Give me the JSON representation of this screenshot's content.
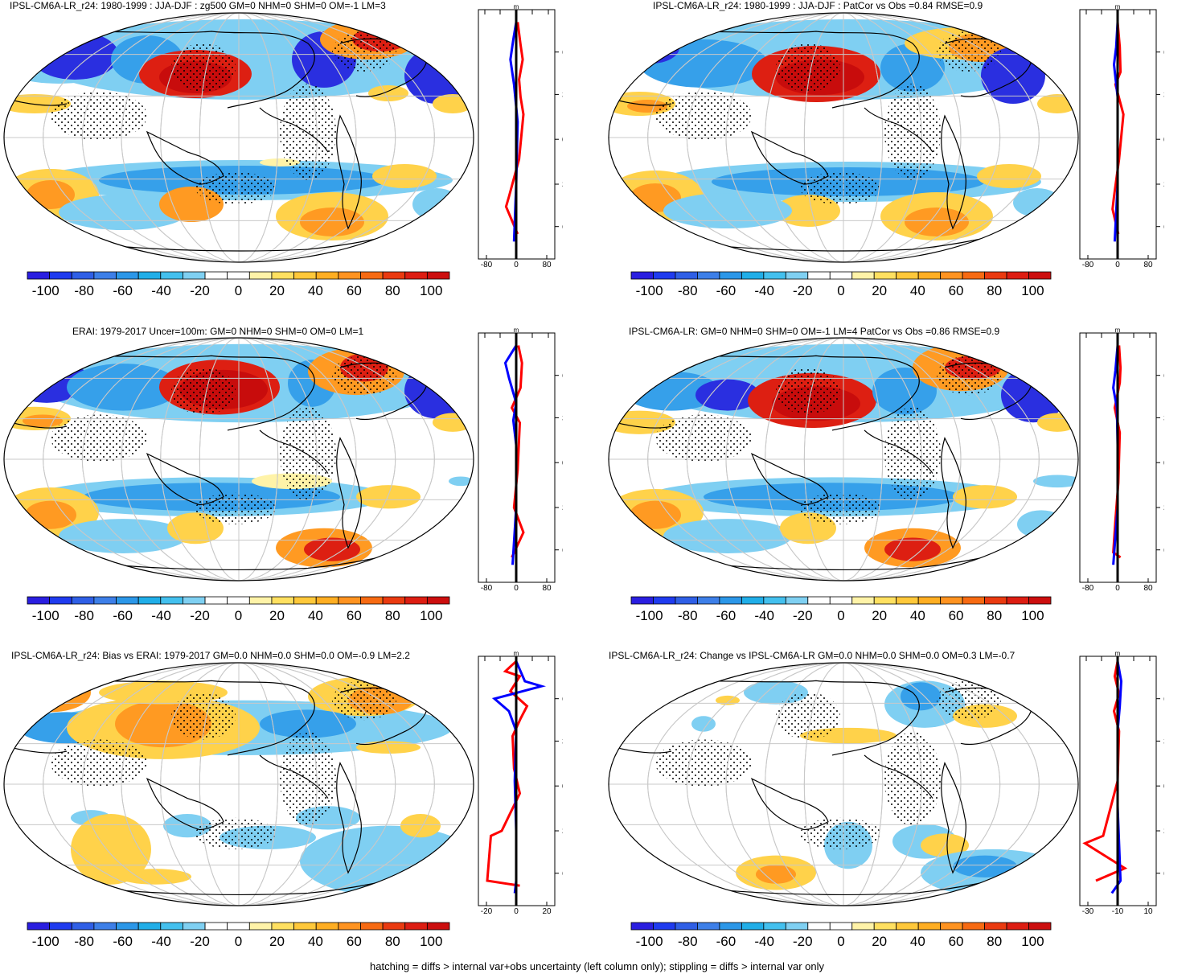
{
  "panels": [
    {
      "title": "IPSL-CM6A-LR_r24: 1980-1999 : JJA-DJF : zg500 GM=0 NHM=0 SHM=0 OM=-1 LM=3",
      "profile_xticks": [
        "-80",
        "0",
        "80"
      ],
      "profile_unit": "m"
    },
    {
      "title": "IPSL-CM6A-LR_r24: 1980-1999 : JJA-DJF : PatCor vs Obs =0.84 RMSE=0.9",
      "profile_xticks": [
        "-80",
        "0",
        "80"
      ],
      "profile_unit": "m"
    },
    {
      "title": "ERAI: 1979-2017 Uncer=100m: GM=0 NHM=0 SHM=0 OM=0 LM=1",
      "profile_xticks": [
        "-80",
        "0",
        "80"
      ],
      "profile_unit": "m"
    },
    {
      "title": "IPSL-CM6A-LR: GM=0 NHM=0 SHM=0 OM=-1 LM=4 PatCor vs Obs =0.86 RMSE=0.9",
      "profile_xticks": [
        "-80",
        "0",
        "80"
      ],
      "profile_unit": "m"
    },
    {
      "title": "IPSL-CM6A-LR_r24: Bias vs ERAI: 1979-2017 GM=0.0 NHM=0.0 SHM=0.0 OM=-0.9 LM=2.2",
      "profile_xticks": [
        "-20",
        "0",
        "20"
      ],
      "profile_unit": "m"
    },
    {
      "title": "IPSL-CM6A-LR_r24: Change vs IPSL-CM6A-LR GM=0.0 NHM=0.0 SHM=0.0 OM=0.3 LM=-0.7",
      "profile_xticks": [
        "-30",
        "-10",
        "10"
      ],
      "profile_unit": "m"
    }
  ],
  "latitude_labels": [
    "60N",
    "30N",
    "0",
    "30S",
    "60S"
  ],
  "colorbar": {
    "labels": [
      "-100",
      "-80",
      "-60",
      "-40",
      "-20",
      "0",
      "20",
      "40",
      "60",
      "80",
      "100"
    ],
    "colors": [
      "#2a1ee0",
      "#1f3bef",
      "#2f5fe6",
      "#3d7fe8",
      "#2b97e8",
      "#20aee8",
      "#43c0ee",
      "#7fd0f2",
      "#ffffff",
      "#ffffff",
      "#fff3a8",
      "#ffe060",
      "#ffc83a",
      "#ffae22",
      "#ff9320",
      "#f76a12",
      "#ea3a10",
      "#dd1d12",
      "#cc0e0e"
    ]
  },
  "footer": "hatching = diffs > internal var+obs uncertainty (left column only); stippling = diffs > internal var only"
}
